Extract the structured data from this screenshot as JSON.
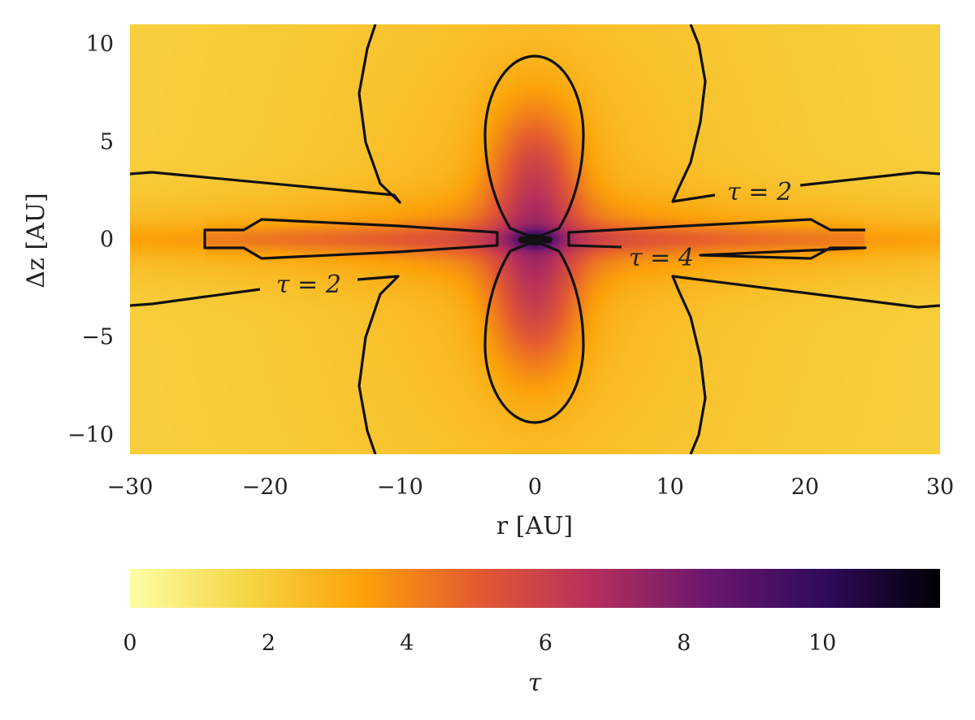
{
  "chart_data": {
    "type": "heatmap",
    "xlabel": "r [AU]",
    "ylabel": "Δz [AU]",
    "xlim": [
      -30,
      30
    ],
    "ylim": [
      -11,
      11
    ],
    "x_ticks": [
      -30,
      -20,
      -10,
      0,
      10,
      20,
      30
    ],
    "y_ticks": [
      -10,
      -5,
      0,
      5,
      10
    ],
    "x_tick_labels": [
      "−30",
      "−20",
      "−10",
      "0",
      "10",
      "20",
      "30"
    ],
    "y_tick_labels": [
      "−10",
      "−5",
      "0",
      "5",
      "10"
    ],
    "grid": false,
    "colormap": "inferno (reversed)",
    "colorbar": {
      "orientation": "horizontal",
      "placement": "bottom",
      "label": "τ",
      "range": [
        0,
        11.7
      ],
      "ticks": [
        0,
        2,
        4,
        6,
        8,
        10
      ],
      "tick_labels": [
        "0",
        "2",
        "4",
        "6",
        "8",
        "10"
      ],
      "colors": [
        "#fcfea4",
        "#f6d645",
        "#fca309",
        "#e45a31",
        "#b52f5c",
        "#6a176e",
        "#300a5b",
        "#000004"
      ]
    },
    "contours": [
      {
        "level": 2,
        "label": "τ = 2",
        "label_positions": [
          [
            17,
            2.4
          ],
          [
            -19,
            -2.3
          ]
        ]
      },
      {
        "level": 4,
        "label": "τ = 4",
        "label_positions": [
          10,
          -0.8
        ]
      }
    ],
    "field_shape": {
      "background_tau_at_edges": 1.8,
      "midplane_tau_at_center": 5.5,
      "polar_lobe_peak_tau": 7.2,
      "lobe_extent_z": 9.5,
      "midplane_extent_r": 24.5
    }
  }
}
